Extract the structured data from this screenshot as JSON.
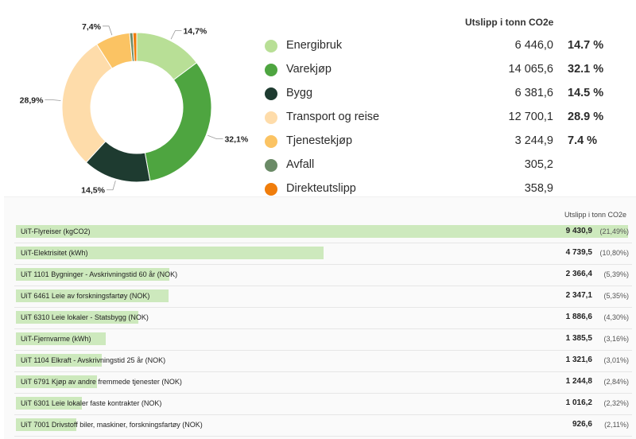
{
  "chart_data": [
    {
      "type": "pie",
      "categories": [
        "Energibruk",
        "Varekjøp",
        "Bygg",
        "Transport og reise",
        "Tjenestekjøp",
        "Avfall",
        "Direkteutslipp"
      ],
      "values": [
        6446.0,
        14065.6,
        6381.6,
        12700.1,
        3244.9,
        305.2,
        358.9
      ],
      "value_labels": [
        "6 446,0",
        "14 065,6",
        "6 381,6",
        "12 700,1",
        "3 244,9",
        "305,2",
        "358,9"
      ],
      "percent_labels": [
        "14.7 %",
        "32.1 %",
        "14.5 %",
        "28.9 %",
        "7.4 %",
        "",
        ""
      ],
      "slice_labels": [
        "14,7%",
        "32,1%",
        "14,5%",
        "28,9%",
        "7,4%",
        "",
        ""
      ],
      "colors": [
        "#b8df96",
        "#4ea540",
        "#1e3b30",
        "#fedcaa",
        "#fbc363",
        "#6a8a66",
        "#f07d0b"
      ],
      "value_header": "Utslipp i tonn CO2e",
      "legend": "right"
    },
    {
      "type": "bar",
      "orientation": "horizontal",
      "value_header": "Utslipp i tonn CO2e",
      "categories": [
        "UiT-Flyreiser (kgCO2)",
        "UiT-Elektrisitet (kWh)",
        "UiT 1101 Bygninger - Avskrivningstid 60 år (NOK)",
        "UiT 6461 Leie av forskningsfartøy (NOK)",
        "UiT 6310 Leie lokaler - Statsbygg (NOK)",
        "UiT-Fjernvarme (kWh)",
        "UiT 1104 Elkraft - Avskrivningstid 25 år (NOK)",
        "UiT 6791 Kjøp av andre fremmede tjenester (NOK)",
        "UiT 6301 Leie lokaler faste kontrakter (NOK)",
        "UiT 7001 Drivstoff biler, maskiner, forskningsfartøy (NOK)"
      ],
      "values": [
        9430.9,
        4739.5,
        2366.4,
        2347.1,
        1886.6,
        1385.5,
        1321.6,
        1244.8,
        1016.2,
        926.6
      ],
      "value_labels": [
        "9 430,9",
        "4 739,5",
        "2 366,4",
        "2 347,1",
        "1 886,6",
        "1 385,5",
        "1 321,6",
        "1 244,8",
        "1 016,2",
        "926,6"
      ],
      "percent_labels": [
        "(21,49%)",
        "(10,80%)",
        "(5,39%)",
        "(5,35%)",
        "(4,30%)",
        "(3,16%)",
        "(3,01%)",
        "(2,84%)",
        "(2,32%)",
        "(2,11%)"
      ],
      "bar_color": "#cde9bd"
    }
  ]
}
